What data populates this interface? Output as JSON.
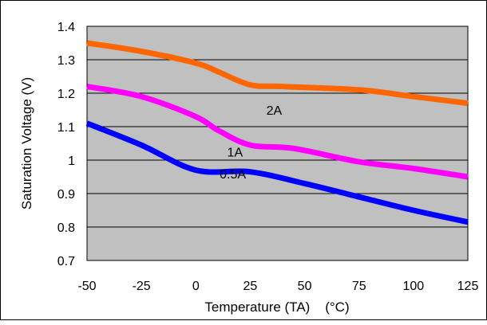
{
  "chart_data": {
    "type": "line",
    "title": "",
    "xlabel": "Temperature (TA)    (°C)",
    "ylabel": "Saturation Voltage (V)",
    "xlim": [
      -50,
      125
    ],
    "ylim": [
      0.7,
      1.4
    ],
    "xticks": [
      "-50",
      "-25",
      "0",
      "25",
      "50",
      "75",
      "100",
      "125"
    ],
    "yticks": [
      "0.7",
      "0.8",
      "0.9",
      "1",
      "1.1",
      "1.2",
      "1.3",
      "1.4"
    ],
    "grid": "horizontal",
    "legend": "none",
    "plot_background": "#c0c0c0",
    "series": [
      {
        "name": "2A",
        "color": "#ff6600",
        "x": [
          -50,
          -25,
          0,
          10,
          25,
          40,
          75,
          100,
          125
        ],
        "y": [
          1.35,
          1.325,
          1.29,
          1.265,
          1.225,
          1.22,
          1.21,
          1.19,
          1.17
        ]
      },
      {
        "name": "1A",
        "color": "#ff00ff",
        "x": [
          -50,
          -25,
          0,
          10,
          25,
          45,
          75,
          100,
          125
        ],
        "y": [
          1.22,
          1.19,
          1.13,
          1.09,
          1.045,
          1.035,
          0.995,
          0.975,
          0.95
        ]
      },
      {
        "name": "0.5A",
        "color": "#0000ff",
        "x": [
          -50,
          -25,
          0,
          25,
          50,
          75,
          100,
          125
        ],
        "y": [
          1.11,
          1.045,
          0.97,
          0.965,
          0.93,
          0.89,
          0.85,
          0.815
        ]
      }
    ],
    "annotations": [
      {
        "text": "2A",
        "x": 36,
        "y": 1.15
      },
      {
        "text": "1A",
        "x": 18,
        "y": 1.025
      },
      {
        "text": "0.5A",
        "x": 17,
        "y": 0.96
      }
    ]
  }
}
